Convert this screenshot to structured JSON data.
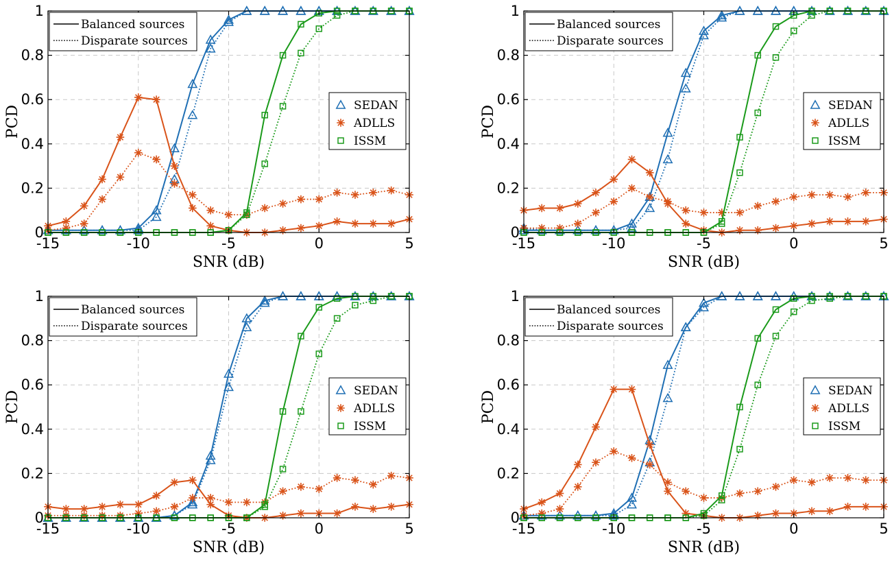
{
  "colors": {
    "SEDAN": "#1f6fb4",
    "ADLLS": "#d95319",
    "ISSM": "#1a9a1a"
  },
  "chart_data": [
    {
      "type": "line",
      "xlabel": "SNR (dB)",
      "ylabel": "PCD",
      "xlim": [
        -15,
        5
      ],
      "ylim": [
        0,
        1
      ],
      "xticks": [
        -15,
        -10,
        -5,
        0,
        5
      ],
      "yticks": [
        0,
        0.2,
        0.4,
        0.6,
        0.8,
        1
      ],
      "xtick_labels": [
        "-15",
        "-10",
        "-5",
        "0",
        "5"
      ],
      "ytick_labels": [
        "0",
        "0.2",
        "0.4",
        "0.6",
        "0.8",
        "1"
      ],
      "grid": true,
      "style_legend": {
        "placement": "top-left",
        "entries": [
          {
            "label": "Balanced sources",
            "style": "solid"
          },
          {
            "label": "Disparate sources",
            "style": "dotted"
          }
        ]
      },
      "series_legend": {
        "placement": "center-right",
        "entries": [
          "SEDAN",
          "ADLLS",
          "ISSM"
        ]
      },
      "x": [
        -15,
        -14,
        -13,
        -12,
        -11,
        -10,
        -9,
        -8,
        -7,
        -6,
        -5,
        -4,
        -3,
        -2,
        -1,
        0,
        1,
        2,
        3,
        4,
        5
      ],
      "series": [
        {
          "name": "SEDAN",
          "marker": "triangle",
          "style": "solid",
          "values": [
            0.01,
            0.01,
            0.01,
            0.01,
            0.01,
            0.02,
            0.1,
            0.38,
            0.67,
            0.87,
            0.96,
            1.0,
            1.0,
            1.0,
            1.0,
            1.0,
            1.0,
            1.0,
            1.0,
            1.0,
            1.0
          ]
        },
        {
          "name": "SEDAN",
          "marker": "triangle",
          "style": "dotted",
          "values": [
            0.01,
            0.01,
            0.01,
            0.01,
            0.01,
            0.01,
            0.07,
            0.24,
            0.53,
            0.83,
            0.95,
            1.0,
            1.0,
            1.0,
            1.0,
            1.0,
            1.0,
            1.0,
            1.0,
            1.0,
            1.0
          ]
        },
        {
          "name": "ADLLS",
          "marker": "asterisk",
          "style": "solid",
          "values": [
            0.03,
            0.05,
            0.12,
            0.24,
            0.43,
            0.61,
            0.6,
            0.3,
            0.11,
            0.03,
            0.01,
            0.0,
            0.0,
            0.01,
            0.02,
            0.03,
            0.05,
            0.04,
            0.04,
            0.04,
            0.06
          ]
        },
        {
          "name": "ADLLS",
          "marker": "asterisk",
          "style": "dotted",
          "values": [
            0.01,
            0.02,
            0.04,
            0.15,
            0.25,
            0.36,
            0.33,
            0.22,
            0.17,
            0.1,
            0.08,
            0.08,
            0.11,
            0.13,
            0.15,
            0.15,
            0.18,
            0.17,
            0.18,
            0.19,
            0.17
          ]
        },
        {
          "name": "ISSM",
          "marker": "square",
          "style": "solid",
          "values": [
            0.0,
            0.0,
            0.0,
            0.0,
            0.0,
            0.0,
            0.0,
            0.0,
            0.0,
            0.0,
            0.01,
            0.09,
            0.53,
            0.8,
            0.94,
            0.99,
            1.0,
            1.0,
            1.0,
            1.0,
            1.0
          ]
        },
        {
          "name": "ISSM",
          "marker": "square",
          "style": "dotted",
          "values": [
            0.0,
            0.0,
            0.0,
            0.0,
            0.0,
            0.0,
            0.0,
            0.0,
            0.0,
            0.0,
            0.01,
            0.08,
            0.31,
            0.57,
            0.81,
            0.92,
            0.98,
            1.0,
            1.0,
            1.0,
            1.0
          ]
        }
      ]
    },
    {
      "type": "line",
      "xlabel": "SNR (dB)",
      "ylabel": "PCD",
      "xlim": [
        -15,
        5
      ],
      "ylim": [
        0,
        1
      ],
      "xticks": [
        -15,
        -10,
        -5,
        0,
        5
      ],
      "yticks": [
        0,
        0.2,
        0.4,
        0.6,
        0.8,
        1
      ],
      "xtick_labels": [
        "-15",
        "-10",
        "-5",
        "0",
        "5"
      ],
      "ytick_labels": [
        "0",
        "0.2",
        "0.4",
        "0.6",
        "0.8",
        "1"
      ],
      "grid": true,
      "style_legend": {
        "placement": "top-left",
        "entries": [
          {
            "label": "Balanced sources",
            "style": "solid"
          },
          {
            "label": "Disparate sources",
            "style": "dotted"
          }
        ]
      },
      "series_legend": {
        "placement": "center-right",
        "entries": [
          "SEDAN",
          "ADLLS",
          "ISSM"
        ]
      },
      "x": [
        -15,
        -14,
        -13,
        -12,
        -11,
        -10,
        -9,
        -8,
        -7,
        -6,
        -5,
        -4,
        -3,
        -2,
        -1,
        0,
        1,
        2,
        3,
        4,
        5
      ],
      "series": [
        {
          "name": "SEDAN",
          "marker": "triangle",
          "style": "solid",
          "values": [
            0.01,
            0.01,
            0.01,
            0.01,
            0.01,
            0.01,
            0.04,
            0.16,
            0.45,
            0.72,
            0.91,
            0.98,
            1.0,
            1.0,
            1.0,
            1.0,
            1.0,
            1.0,
            1.0,
            1.0,
            1.0
          ]
        },
        {
          "name": "SEDAN",
          "marker": "triangle",
          "style": "dotted",
          "values": [
            0.02,
            0.01,
            0.01,
            0.01,
            0.01,
            0.01,
            0.02,
            0.11,
            0.33,
            0.65,
            0.89,
            0.97,
            1.0,
            1.0,
            1.0,
            1.0,
            1.0,
            1.0,
            1.0,
            1.0,
            1.0
          ]
        },
        {
          "name": "ADLLS",
          "marker": "asterisk",
          "style": "solid",
          "values": [
            0.1,
            0.11,
            0.11,
            0.13,
            0.18,
            0.24,
            0.33,
            0.27,
            0.13,
            0.04,
            0.01,
            0.0,
            0.01,
            0.01,
            0.02,
            0.03,
            0.04,
            0.05,
            0.05,
            0.05,
            0.06
          ]
        },
        {
          "name": "ADLLS",
          "marker": "asterisk",
          "style": "dotted",
          "values": [
            0.02,
            0.02,
            0.02,
            0.04,
            0.09,
            0.14,
            0.2,
            0.16,
            0.14,
            0.1,
            0.09,
            0.09,
            0.09,
            0.12,
            0.14,
            0.16,
            0.17,
            0.17,
            0.16,
            0.18,
            0.18
          ]
        },
        {
          "name": "ISSM",
          "marker": "square",
          "style": "solid",
          "values": [
            0.0,
            0.0,
            0.0,
            0.0,
            0.0,
            0.0,
            0.0,
            0.0,
            0.0,
            0.0,
            0.0,
            0.05,
            0.43,
            0.8,
            0.93,
            0.98,
            1.0,
            1.0,
            1.0,
            1.0,
            1.0
          ]
        },
        {
          "name": "ISSM",
          "marker": "square",
          "style": "dotted",
          "values": [
            0.0,
            0.0,
            0.0,
            0.0,
            0.0,
            0.0,
            0.0,
            0.0,
            0.0,
            0.0,
            0.0,
            0.04,
            0.27,
            0.54,
            0.79,
            0.91,
            0.98,
            1.0,
            1.0,
            1.0,
            1.0
          ]
        }
      ]
    },
    {
      "type": "line",
      "xlabel": "SNR (dB)",
      "ylabel": "PCD",
      "xlim": [
        -15,
        5
      ],
      "ylim": [
        0,
        1
      ],
      "xticks": [
        -15,
        -10,
        -5,
        0,
        5
      ],
      "yticks": [
        0,
        0.2,
        0.4,
        0.6,
        0.8,
        1
      ],
      "xtick_labels": [
        "-15",
        "-10",
        "-5",
        "0",
        "5"
      ],
      "ytick_labels": [
        "0",
        "0.2",
        "0.4",
        "0.6",
        "0.8",
        "1"
      ],
      "grid": true,
      "style_legend": {
        "placement": "top-left",
        "entries": [
          {
            "label": "Balanced sources",
            "style": "solid"
          },
          {
            "label": "Disparate sources",
            "style": "dotted"
          }
        ]
      },
      "series_legend": {
        "placement": "center-right",
        "entries": [
          "SEDAN",
          "ADLLS",
          "ISSM"
        ]
      },
      "x": [
        -15,
        -14,
        -13,
        -12,
        -11,
        -10,
        -9,
        -8,
        -7,
        -6,
        -5,
        -4,
        -3,
        -2,
        -1,
        0,
        1,
        2,
        3,
        4,
        5
      ],
      "series": [
        {
          "name": "SEDAN",
          "marker": "triangle",
          "style": "solid",
          "values": [
            0.0,
            0.0,
            0.0,
            0.0,
            0.0,
            0.0,
            0.0,
            0.01,
            0.07,
            0.28,
            0.65,
            0.9,
            0.98,
            1.0,
            1.0,
            1.0,
            1.0,
            1.0,
            1.0,
            1.0,
            1.0
          ]
        },
        {
          "name": "SEDAN",
          "marker": "triangle",
          "style": "dotted",
          "values": [
            0.0,
            0.0,
            0.0,
            0.0,
            0.0,
            0.0,
            0.0,
            0.01,
            0.06,
            0.26,
            0.59,
            0.86,
            0.97,
            1.0,
            1.0,
            1.0,
            1.0,
            1.0,
            1.0,
            1.0,
            1.0
          ]
        },
        {
          "name": "ADLLS",
          "marker": "asterisk",
          "style": "solid",
          "values": [
            0.05,
            0.04,
            0.04,
            0.05,
            0.06,
            0.06,
            0.1,
            0.16,
            0.17,
            0.06,
            0.01,
            0.0,
            0.0,
            0.01,
            0.02,
            0.02,
            0.02,
            0.05,
            0.04,
            0.05,
            0.06
          ]
        },
        {
          "name": "ADLLS",
          "marker": "asterisk",
          "style": "dotted",
          "values": [
            0.01,
            0.01,
            0.01,
            0.01,
            0.01,
            0.02,
            0.03,
            0.05,
            0.09,
            0.09,
            0.07,
            0.07,
            0.07,
            0.12,
            0.14,
            0.13,
            0.18,
            0.17,
            0.15,
            0.19,
            0.18
          ]
        },
        {
          "name": "ISSM",
          "marker": "square",
          "style": "solid",
          "values": [
            0.0,
            0.0,
            0.0,
            0.0,
            0.0,
            0.0,
            0.0,
            0.0,
            0.0,
            0.0,
            0.0,
            0.0,
            0.06,
            0.48,
            0.82,
            0.95,
            0.99,
            1.0,
            1.0,
            1.0,
            1.0
          ]
        },
        {
          "name": "ISSM",
          "marker": "square",
          "style": "dotted",
          "values": [
            0.0,
            0.0,
            0.0,
            0.0,
            0.0,
            0.0,
            0.0,
            0.0,
            0.0,
            0.0,
            0.0,
            0.0,
            0.05,
            0.22,
            0.48,
            0.74,
            0.9,
            0.96,
            0.98,
            1.0,
            1.0
          ]
        }
      ]
    },
    {
      "type": "line",
      "xlabel": "SNR (dB)",
      "ylabel": "PCD",
      "xlim": [
        -15,
        5
      ],
      "ylim": [
        0,
        1
      ],
      "xticks": [
        -15,
        -10,
        -5,
        0,
        5
      ],
      "yticks": [
        0,
        0.2,
        0.4,
        0.6,
        0.8,
        1
      ],
      "xtick_labels": [
        "-15",
        "-10",
        "-5",
        "0",
        "5"
      ],
      "ytick_labels": [
        "0",
        "0.2",
        "0.4",
        "0.6",
        "0.8",
        "1"
      ],
      "grid": true,
      "style_legend": {
        "placement": "top-left",
        "entries": [
          {
            "label": "Balanced sources",
            "style": "solid"
          },
          {
            "label": "Disparate sources",
            "style": "dotted"
          }
        ]
      },
      "series_legend": {
        "placement": "center-right",
        "entries": [
          "SEDAN",
          "ADLLS",
          "ISSM"
        ]
      },
      "x": [
        -15,
        -14,
        -13,
        -12,
        -11,
        -10,
        -9,
        -8,
        -7,
        -6,
        -5,
        -4,
        -3,
        -2,
        -1,
        0,
        1,
        2,
        3,
        4,
        5
      ],
      "series": [
        {
          "name": "SEDAN",
          "marker": "triangle",
          "style": "solid",
          "values": [
            0.01,
            0.01,
            0.01,
            0.01,
            0.01,
            0.02,
            0.09,
            0.35,
            0.69,
            0.86,
            0.97,
            1.0,
            1.0,
            1.0,
            1.0,
            1.0,
            1.0,
            1.0,
            1.0,
            1.0,
            1.0
          ]
        },
        {
          "name": "SEDAN",
          "marker": "triangle",
          "style": "dotted",
          "values": [
            0.01,
            0.01,
            0.01,
            0.01,
            0.01,
            0.01,
            0.06,
            0.25,
            0.54,
            0.86,
            0.95,
            1.0,
            1.0,
            1.0,
            1.0,
            1.0,
            1.0,
            1.0,
            1.0,
            1.0,
            1.0
          ]
        },
        {
          "name": "ADLLS",
          "marker": "asterisk",
          "style": "solid",
          "values": [
            0.04,
            0.07,
            0.11,
            0.24,
            0.41,
            0.58,
            0.58,
            0.33,
            0.12,
            0.02,
            0.01,
            0.0,
            0.0,
            0.01,
            0.02,
            0.02,
            0.03,
            0.03,
            0.05,
            0.05,
            0.05
          ]
        },
        {
          "name": "ADLLS",
          "marker": "asterisk",
          "style": "dotted",
          "values": [
            0.01,
            0.02,
            0.04,
            0.14,
            0.25,
            0.3,
            0.27,
            0.24,
            0.16,
            0.12,
            0.09,
            0.09,
            0.11,
            0.12,
            0.14,
            0.17,
            0.16,
            0.18,
            0.18,
            0.17,
            0.17
          ]
        },
        {
          "name": "ISSM",
          "marker": "square",
          "style": "solid",
          "values": [
            0.0,
            0.0,
            0.0,
            0.0,
            0.0,
            0.0,
            0.0,
            0.0,
            0.0,
            0.0,
            0.02,
            0.1,
            0.5,
            0.81,
            0.94,
            0.99,
            1.0,
            1.0,
            1.0,
            1.0,
            1.0
          ]
        },
        {
          "name": "ISSM",
          "marker": "square",
          "style": "dotted",
          "values": [
            0.0,
            0.0,
            0.0,
            0.0,
            0.0,
            0.0,
            0.0,
            0.0,
            0.0,
            0.0,
            0.01,
            0.08,
            0.31,
            0.6,
            0.82,
            0.93,
            0.98,
            0.99,
            1.0,
            1.0,
            1.0
          ]
        }
      ]
    }
  ]
}
